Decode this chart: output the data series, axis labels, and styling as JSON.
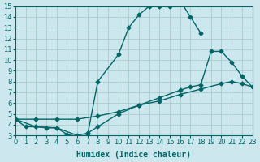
{
  "xlabel": "Humidex (Indice chaleur)",
  "bg_color": "#cce8ee",
  "line_color": "#006666",
  "grid_color": "#aacccc",
  "xlim": [
    0,
    23
  ],
  "ylim": [
    3,
    15
  ],
  "yticks": [
    3,
    4,
    5,
    6,
    7,
    8,
    9,
    10,
    11,
    12,
    13,
    14,
    15
  ],
  "xticks": [
    0,
    1,
    2,
    3,
    4,
    5,
    6,
    7,
    8,
    9,
    10,
    11,
    12,
    13,
    14,
    15,
    16,
    17,
    18,
    19,
    20,
    21,
    22,
    23
  ],
  "line1_x": [
    0,
    1,
    2,
    3,
    4,
    5,
    6,
    7,
    8,
    10,
    11,
    12,
    13,
    14,
    15,
    16,
    17,
    18
  ],
  "line1_y": [
    4.5,
    3.8,
    3.8,
    3.7,
    3.7,
    3.1,
    2.9,
    3.0,
    8.0,
    10.5,
    13.0,
    14.2,
    15.0,
    15.0,
    15.0,
    15.5,
    14.0,
    12.5
  ],
  "line2_x": [
    0,
    2,
    4,
    6,
    8,
    10,
    12,
    14,
    16,
    18,
    20,
    21,
    22,
    23
  ],
  "line2_y": [
    4.5,
    4.5,
    4.5,
    4.5,
    4.8,
    5.2,
    5.8,
    6.2,
    6.8,
    7.3,
    7.8,
    8.0,
    7.8,
    7.5
  ],
  "line3_x": [
    0,
    2,
    4,
    6,
    7,
    8,
    10,
    12,
    14,
    16,
    17,
    18,
    19,
    20,
    21,
    22,
    23
  ],
  "line3_y": [
    4.5,
    3.8,
    3.7,
    3.0,
    3.2,
    3.8,
    5.0,
    5.8,
    6.5,
    7.2,
    7.5,
    7.7,
    10.8,
    10.8,
    9.8,
    8.5,
    7.5
  ],
  "marker": "D",
  "marker_size": 2.5,
  "line_width": 1.0,
  "xlabel_fontsize": 7,
  "tick_fontsize": 6
}
